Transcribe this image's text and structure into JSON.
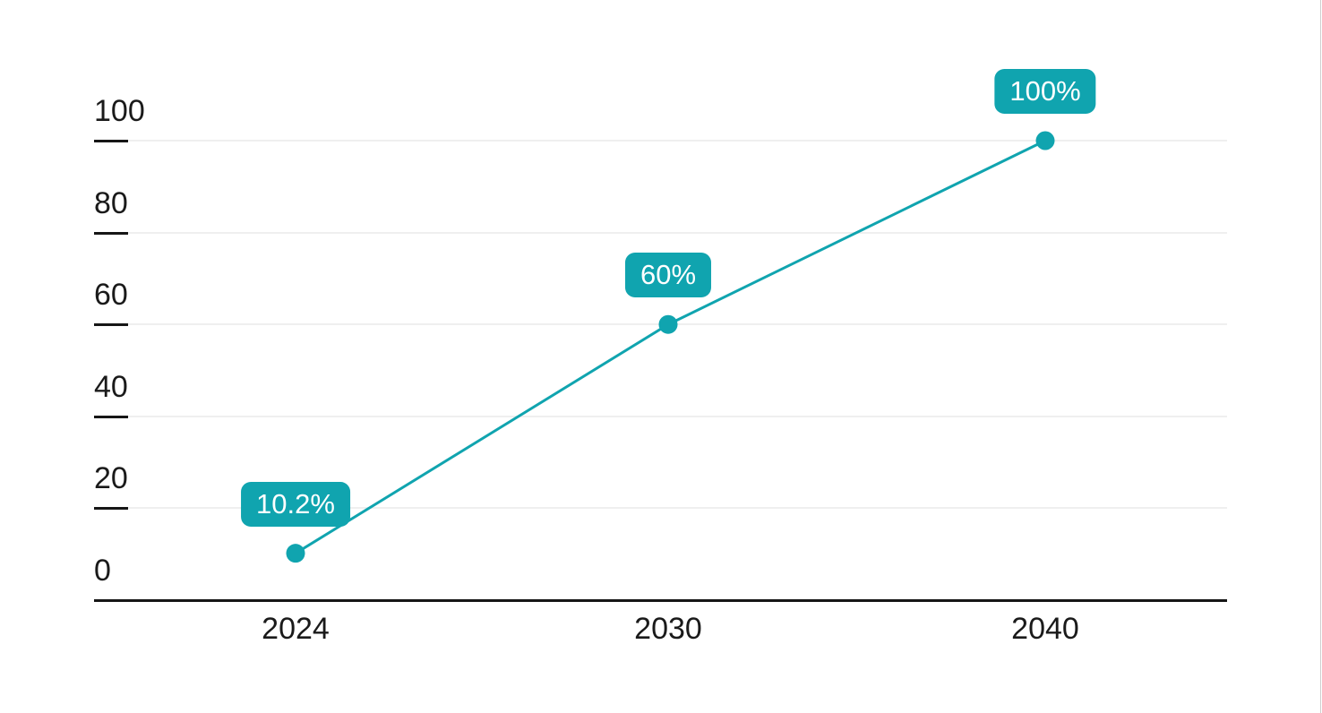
{
  "chart_data": {
    "type": "line",
    "categories": [
      "2024",
      "2030",
      "2040"
    ],
    "values": [
      10.2,
      60,
      100
    ],
    "point_labels": [
      "10.2%",
      "60%",
      "100%"
    ],
    "y_ticks": [
      0,
      20,
      40,
      60,
      80,
      100
    ],
    "ylim": [
      0,
      100
    ],
    "grid": true,
    "legend_position": "none",
    "colors": {
      "line": "#10A4AF",
      "marker": "#10A4AF",
      "data_label_bg": "#10A4AF",
      "data_label_text": "#FFFFFF",
      "axis": "#161616",
      "gridline": "#EFEFEF",
      "tick_label_text": "#1A1A1A"
    }
  }
}
